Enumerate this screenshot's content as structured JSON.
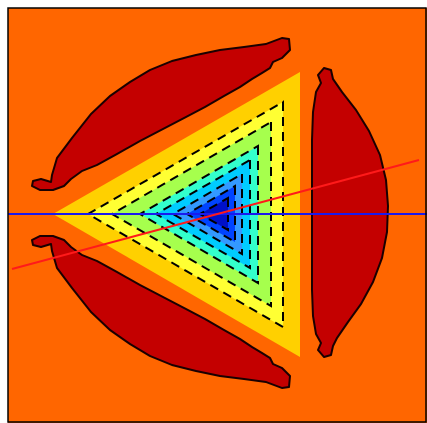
{
  "figure": {
    "colors": {
      "background": "#ff6600",
      "lobe_fill": "#c40000",
      "outline": "#1a0000",
      "contour_bands": [
        "#ffd000",
        "#ffff33",
        "#a6ff4d",
        "#33ffcc",
        "#00ccff",
        "#3399ff",
        "#0044ff",
        "#0010c8"
      ],
      "dash_line": "#000000",
      "horizontal_line": "#1a1aee",
      "oblique_line": "#ff1a1a"
    }
  }
}
